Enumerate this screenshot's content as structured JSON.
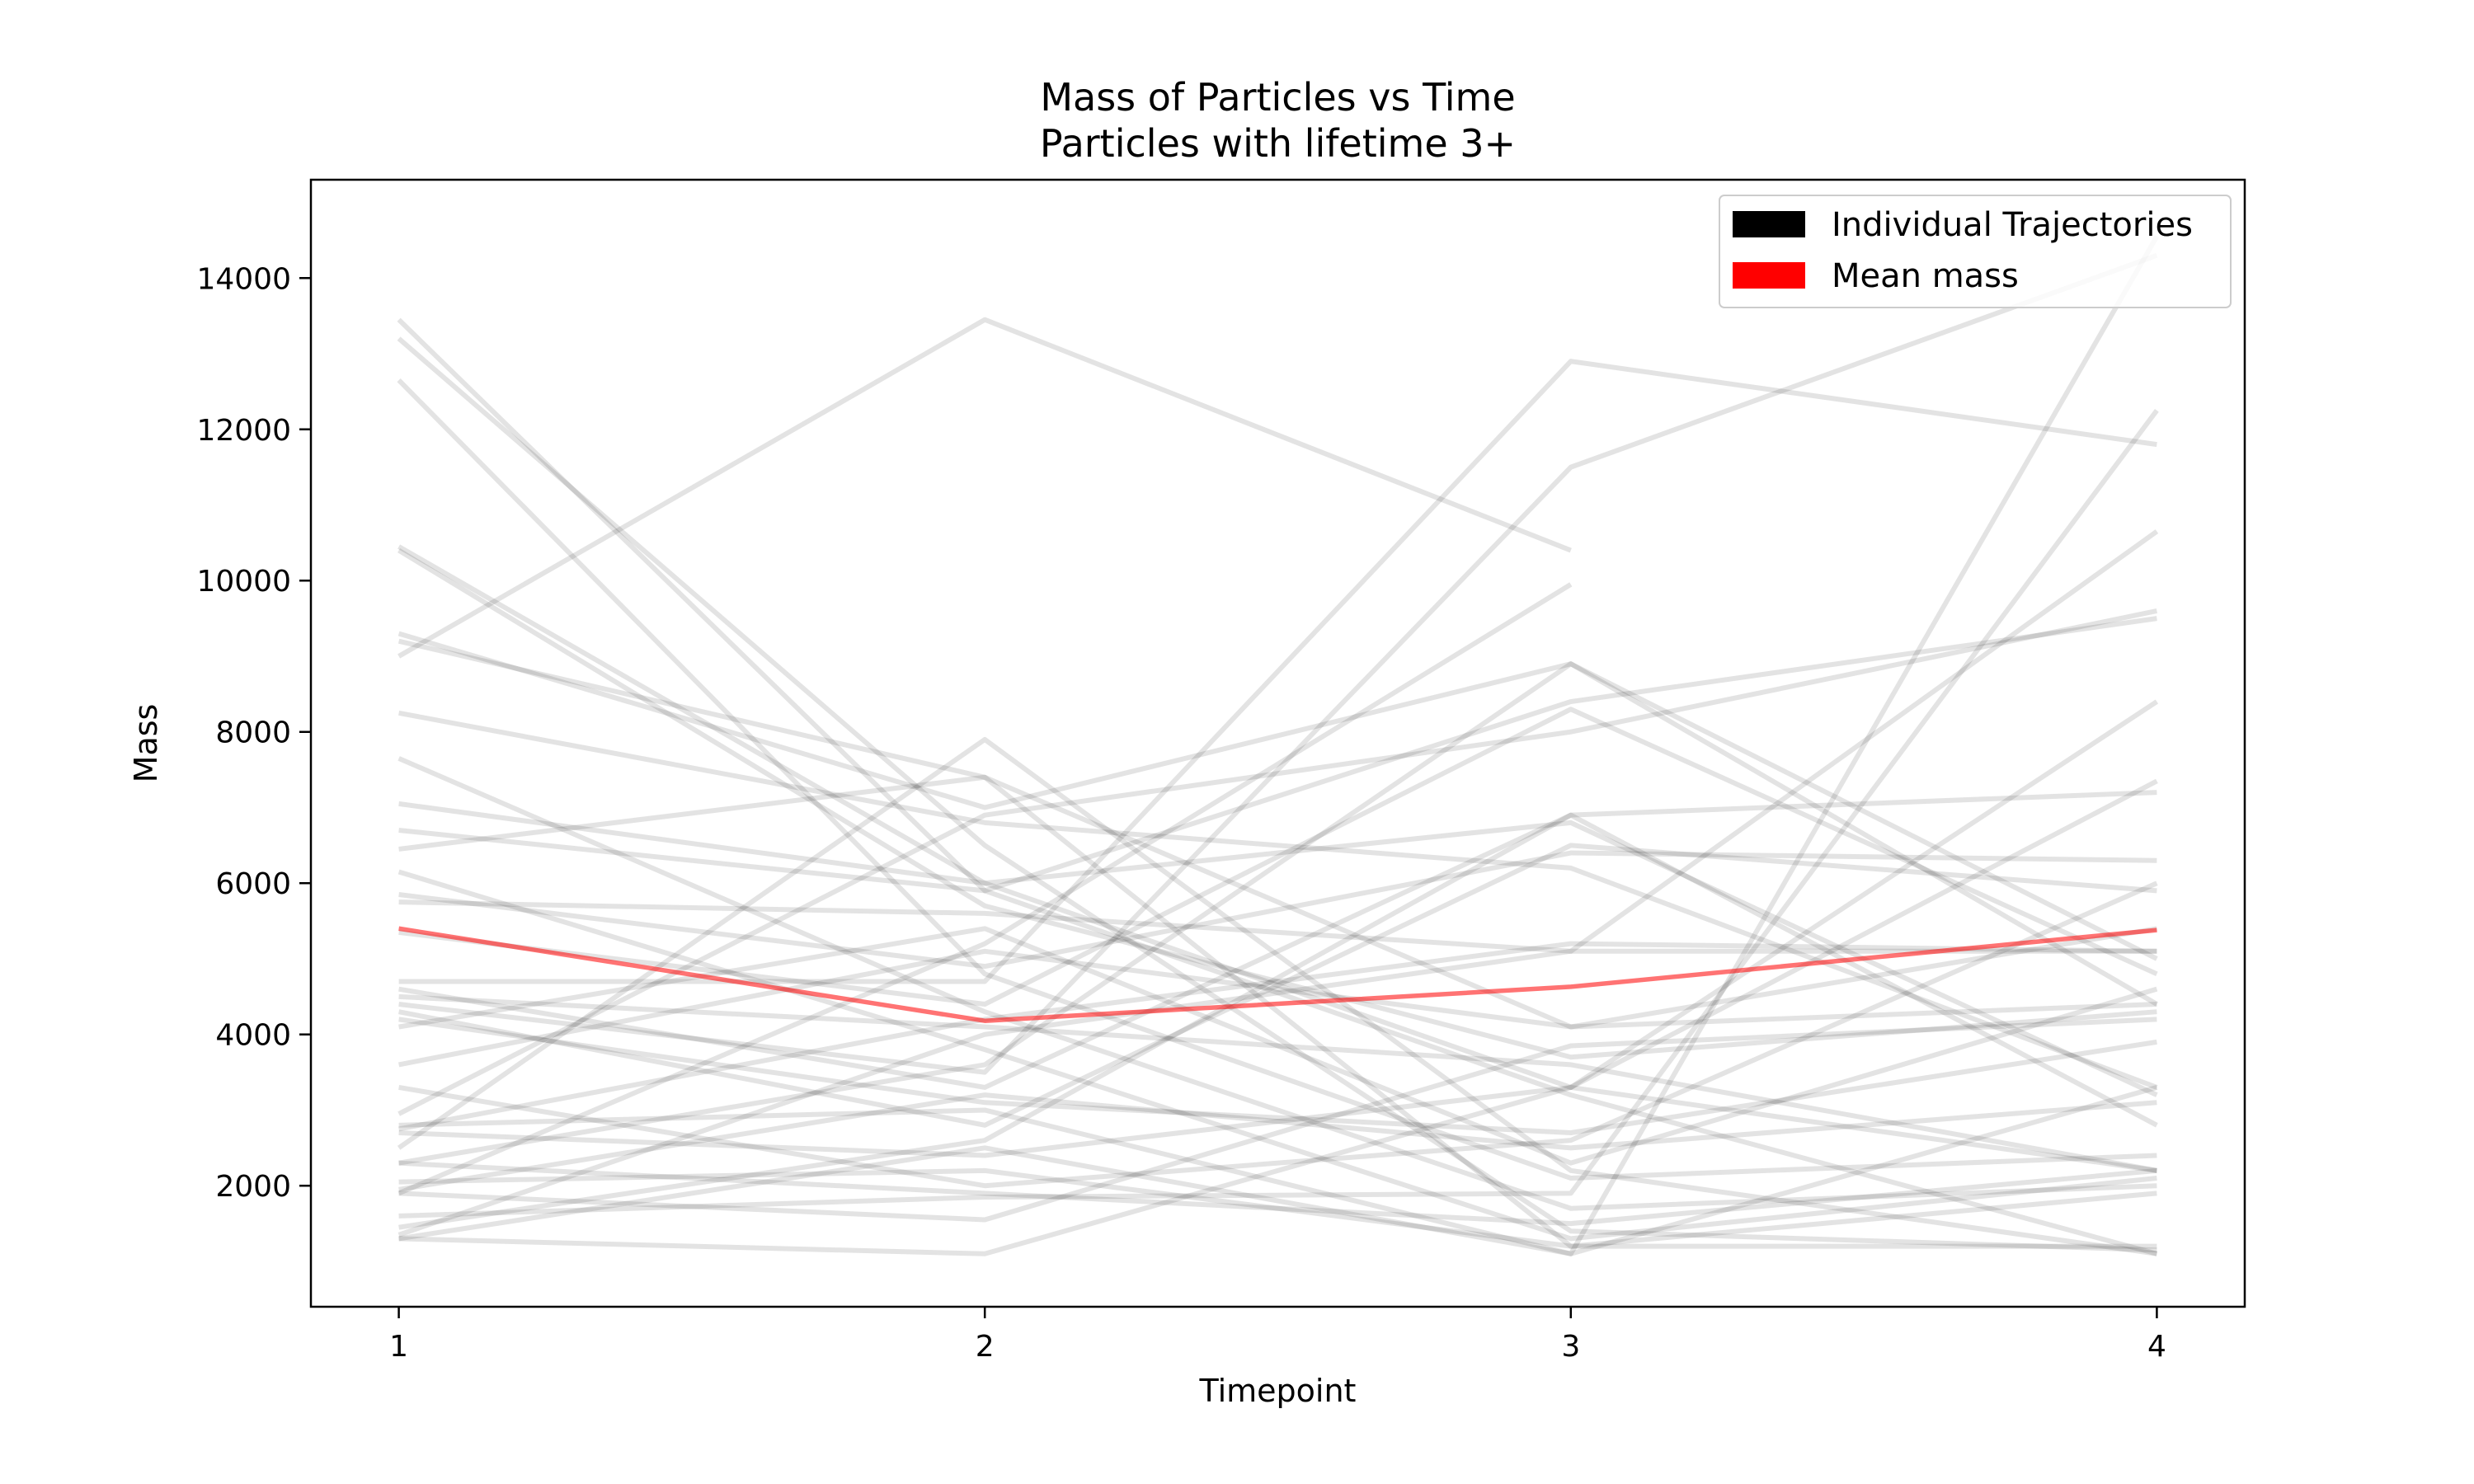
{
  "chart_data": {
    "type": "line",
    "title": "Mass of Particles vs Time",
    "subtitle": "Particles with lifetime 3+",
    "xlabel": "Timepoint",
    "ylabel": "Mass",
    "x": [
      1,
      2,
      3,
      4
    ],
    "x_ticks": [
      "1",
      "2",
      "3",
      "4"
    ],
    "xlim": [
      0.85,
      4.15
    ],
    "ylim": [
      400,
      15300
    ],
    "y_ticks": [
      2000,
      4000,
      6000,
      8000,
      10000,
      12000,
      14000
    ],
    "y_tick_labels": [
      "2000",
      "4000",
      "6000",
      "8000",
      "10000",
      "12000",
      "14000"
    ],
    "grid": false,
    "legend": {
      "position": "top-right",
      "entries": [
        {
          "label": "Individual Trajectories",
          "color": "#000000"
        },
        {
          "label": "Mean mass",
          "color": "#ff0000"
        }
      ]
    },
    "colors": {
      "trajectory": "#000000",
      "mean": "#ff0000"
    },
    "series": [
      {
        "name": "Mean mass",
        "values": [
          5400,
          4180,
          4630,
          5380
        ]
      }
    ],
    "trajectories": [
      [
        13450,
        5900,
        3200,
        1100
      ],
      [
        13200,
        6500,
        1400,
        1150
      ],
      [
        12650,
        4800,
        2100,
        2400
      ],
      [
        10450,
        6000,
        3300,
        2200
      ],
      [
        10400,
        5700,
        3700,
        4300
      ],
      [
        9000,
        13450,
        10400
      ],
      [
        9300,
        7000,
        8900,
        4400
      ],
      [
        9200,
        7400,
        1200,
        1200
      ],
      [
        8250,
        6800,
        6200,
        3300
      ],
      [
        7650,
        4300,
        1700,
        2000
      ],
      [
        7050,
        6000,
        6800,
        3200
      ],
      [
        6700,
        5900,
        8400,
        9500
      ],
      [
        6450,
        7400,
        4100,
        5400
      ],
      [
        6150,
        3800,
        1300,
        2100
      ],
      [
        5850,
        4900,
        6400,
        6300
      ],
      [
        5750,
        5600,
        5100,
        5100
      ],
      [
        5350,
        4400,
        8300,
        4800
      ],
      [
        4700,
        4700,
        12900,
        11800
      ],
      [
        4500,
        4100,
        3600,
        2200
      ],
      [
        4400,
        3500,
        11500,
        14300
      ],
      [
        4300,
        2800,
        6500,
        5900
      ],
      [
        4200,
        3100,
        2700,
        3900
      ],
      [
        4100,
        5400,
        2300,
        4600
      ],
      [
        3600,
        5100,
        4100,
        4400
      ],
      [
        2950,
        6900,
        8000,
        9600
      ],
      [
        2800,
        3000,
        1100,
        14550
      ],
      [
        2750,
        4200,
        5200,
        5100
      ],
      [
        2700,
        2400,
        3300,
        8400
      ],
      [
        2500,
        7900,
        2200,
        1100
      ],
      [
        2300,
        3600,
        8900,
        5000
      ],
      [
        1950,
        3200,
        2500,
        3100
      ],
      [
        1900,
        5200,
        9950
      ],
      [
        1600,
        1850,
        1900,
        12250
      ],
      [
        1450,
        2600,
        6900,
        2800
      ],
      [
        1350,
        4000,
        5100,
        10650
      ],
      [
        1300,
        2500,
        1100,
        3300
      ],
      [
        1300,
        1100,
        3300,
        7350
      ],
      [
        1900,
        1550,
        3850,
        4200
      ],
      [
        2300,
        1900,
        1500,
        2200
      ],
      [
        2050,
        2200,
        1200,
        1900
      ],
      [
        3300,
        2000,
        2600,
        6000
      ],
      [
        4600,
        3300,
        6900,
        7200
      ]
    ]
  }
}
